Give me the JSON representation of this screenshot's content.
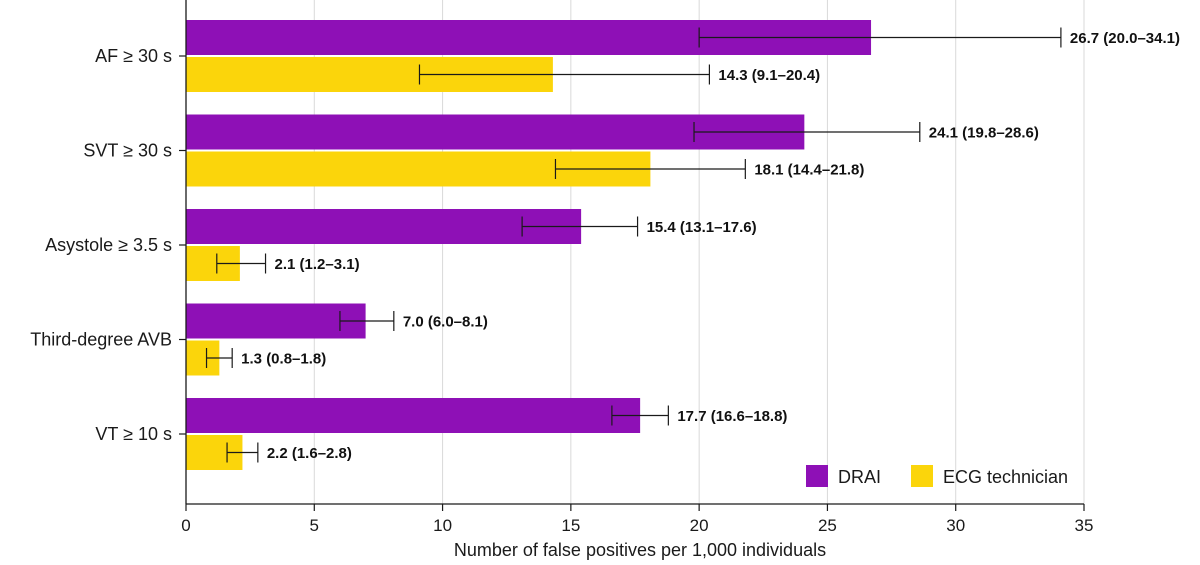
{
  "chart_data": {
    "type": "bar",
    "orientation": "horizontal",
    "title": "",
    "xlabel": "Number of false positives per 1,000 individuals",
    "ylabel": "",
    "xlim": [
      0,
      35
    ],
    "xticks": [
      0,
      5,
      10,
      15,
      20,
      25,
      30,
      35
    ],
    "grid": "vertical",
    "legend_position": "bottom-right",
    "categories": [
      "AF ≥ 30 s",
      "SVT ≥ 30 s",
      "Asystole ≥ 3.5 s",
      "Third-degree AVB",
      "VT ≥ 10 s"
    ],
    "series": [
      {
        "name": "DRAI",
        "color": "#8E10B6",
        "values": [
          26.7,
          24.1,
          15.4,
          7.0,
          17.7
        ],
        "ci_low": [
          20.0,
          19.8,
          13.1,
          6.0,
          16.6
        ],
        "ci_high": [
          34.1,
          28.6,
          17.6,
          8.1,
          18.8
        ],
        "labels": [
          "26.7 (20.0–34.1)",
          "24.1 (19.8–28.6)",
          "15.4 (13.1–17.6)",
          "7.0 (6.0–8.1)",
          "17.7 (16.6–18.8)"
        ]
      },
      {
        "name": "ECG technician",
        "color": "#FBD50B",
        "values": [
          14.3,
          18.1,
          2.1,
          1.3,
          2.2
        ],
        "ci_low": [
          9.1,
          14.4,
          1.2,
          0.8,
          1.6
        ],
        "ci_high": [
          20.4,
          21.8,
          3.1,
          1.8,
          2.8
        ],
        "labels": [
          "14.3 (9.1–20.4)",
          "18.1 (14.4–21.8)",
          "2.1 (1.2–3.1)",
          "1.3 (0.8–1.8)",
          "2.2 (1.6–2.8)"
        ]
      }
    ]
  }
}
